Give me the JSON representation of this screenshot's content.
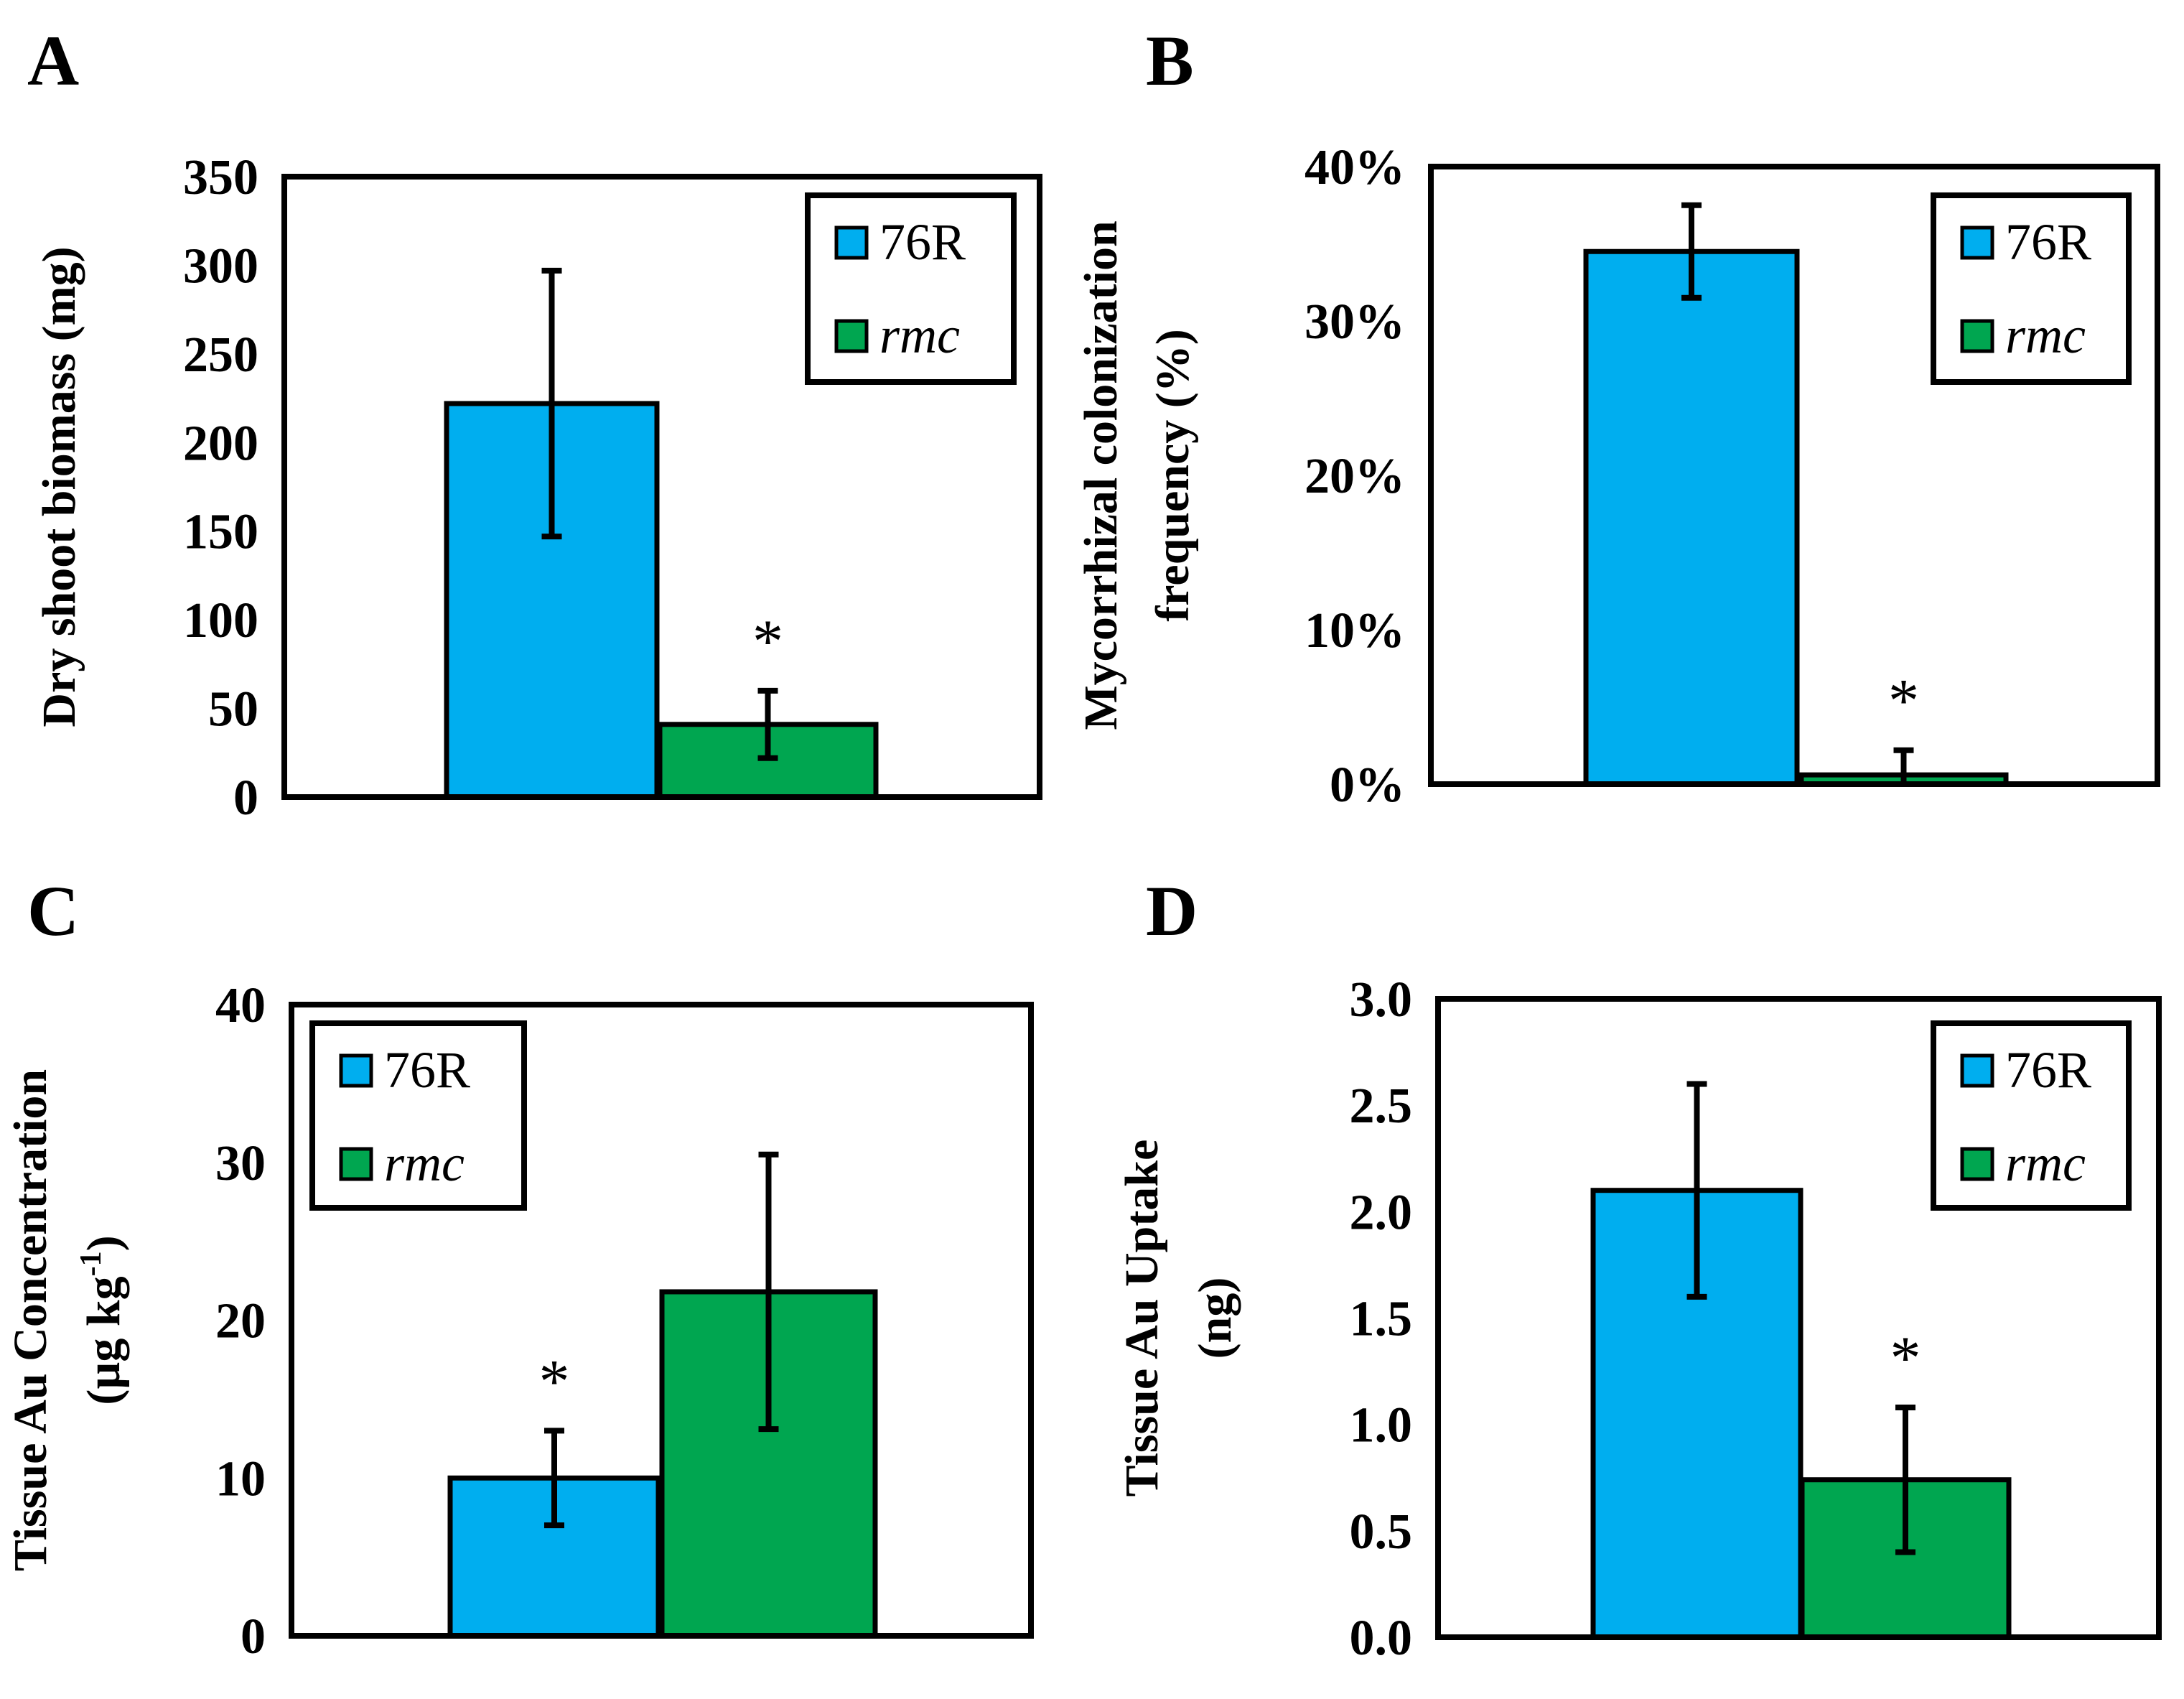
{
  "colors": {
    "76R": "#00aeef",
    "rmc": "#00a650"
  },
  "chart_data": [
    {
      "panel": "A",
      "type": "bar",
      "ylabel": "Dry shoot biomass (mg)",
      "ylim": [
        0,
        350
      ],
      "yticks": [
        "0",
        "50",
        "100",
        "150",
        "200",
        "250",
        "300",
        "350"
      ],
      "tick_values": [
        0,
        50,
        100,
        150,
        200,
        250,
        300,
        350
      ],
      "legend_position": "top-right",
      "series": [
        {
          "name": "76R",
          "value": 222,
          "error": 75,
          "sig": ""
        },
        {
          "name": "rmc",
          "value": 41,
          "error": 19,
          "sig": "*"
        }
      ]
    },
    {
      "panel": "B",
      "type": "bar",
      "ylabel_lines": [
        "Mycorrhizal colonization",
        "frequency (%)"
      ],
      "ylim": [
        0,
        40
      ],
      "yticks": [
        "0%",
        "10%",
        "20%",
        "30%",
        "40%"
      ],
      "tick_values": [
        0,
        10,
        20,
        30,
        40
      ],
      "legend_position": "top-right",
      "series": [
        {
          "name": "76R",
          "value": 34.5,
          "error": 3,
          "sig": ""
        },
        {
          "name": "rmc",
          "value": 0.6,
          "error": 1.6,
          "sig": "*"
        }
      ]
    },
    {
      "panel": "C",
      "type": "bar",
      "ylabel_lines": [
        "Tissue Au Concentration",
        "(µg kg",
        "-1",
        ")"
      ],
      "ylim": [
        0,
        40
      ],
      "yticks": [
        "0",
        "10",
        "20",
        "30",
        "40"
      ],
      "tick_values": [
        0,
        10,
        20,
        30,
        40
      ],
      "legend_position": "top-left",
      "series": [
        {
          "name": "76R",
          "value": 10,
          "error": 3,
          "sig": "*"
        },
        {
          "name": "rmc",
          "value": 21.8,
          "error": 8.7,
          "sig": ""
        }
      ]
    },
    {
      "panel": "D",
      "type": "bar",
      "ylabel_lines": [
        "Tissue Au Uptake",
        "(ng)"
      ],
      "ylim": [
        0,
        3
      ],
      "yticks": [
        "0.0",
        "0.5",
        "1.0",
        "1.5",
        "2.0",
        "2.5",
        "3.0"
      ],
      "tick_values": [
        0,
        0.5,
        1,
        1.5,
        2,
        2.5,
        3
      ],
      "legend_position": "top-right",
      "series": [
        {
          "name": "76R",
          "value": 2.1,
          "error": 0.5,
          "sig": ""
        },
        {
          "name": "rmc",
          "value": 0.74,
          "error": 0.34,
          "sig": "*"
        }
      ]
    }
  ]
}
